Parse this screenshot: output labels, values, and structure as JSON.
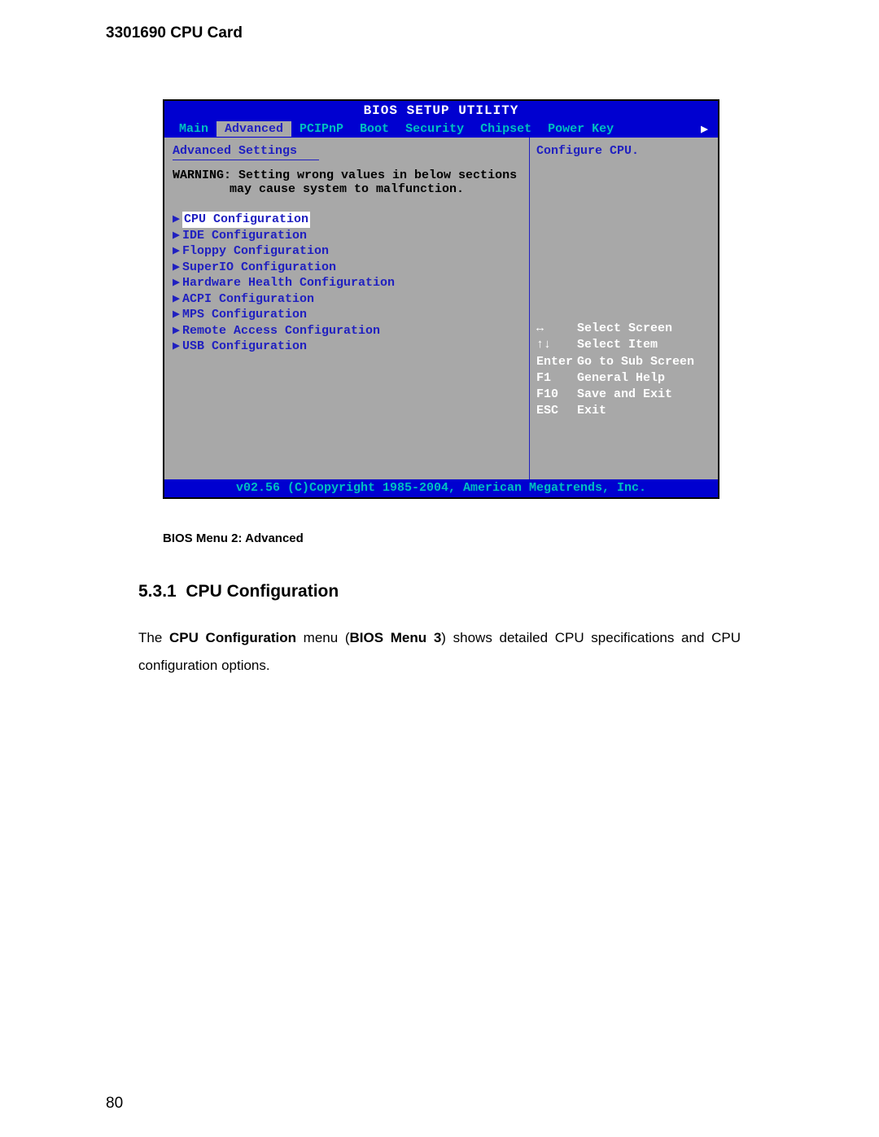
{
  "doc": {
    "header": "3301690 CPU Card",
    "caption": "BIOS Menu 2: Advanced",
    "section_number": "5.3.1",
    "section_title": "CPU Configuration",
    "body_p1_a": "The ",
    "body_p1_b": "CPU Configuration",
    "body_p1_c": " menu (",
    "body_p1_d": "BIOS Menu 3",
    "body_p1_e": ") shows detailed CPU specifications and CPU configuration options.",
    "page_number": "80"
  },
  "bios": {
    "title": "BIOS SETUP UTILITY",
    "tabs": [
      "Main",
      "Advanced",
      "PCIPnP",
      "Boot",
      "Security",
      "Chipset",
      "Power Key"
    ],
    "active_tab_index": 1,
    "settings_title": "Advanced Settings",
    "warning_l1": "WARNING: Setting wrong values in below sections",
    "warning_l2": "may cause system to malfunction.",
    "menu": [
      "CPU Configuration",
      "IDE Configuration",
      "Floppy Configuration",
      "SuperIO Configuration",
      "Hardware Health Configuration",
      "ACPI Configuration",
      "MPS Configuration",
      "Remote Access Configuration",
      "USB Configuration"
    ],
    "selected_menu_index": 0,
    "help_text": "Configure CPU.",
    "hints": [
      {
        "k": "↔",
        "v": "Select Screen"
      },
      {
        "k": "↑↓",
        "v": "Select Item"
      },
      {
        "k": "Enter",
        "v": "Go to Sub Screen"
      },
      {
        "k": "F1",
        "v": "General Help"
      },
      {
        "k": "F10",
        "v": "Save and Exit"
      },
      {
        "k": "ESC",
        "v": "Exit"
      }
    ],
    "footer": "v02.56 (C)Copyright 1985-2004, American Megatrends, Inc.",
    "colors": {
      "blue": "#0000d0",
      "gray": "#a8a8a8",
      "cyan": "#00c0c0",
      "darkblue": "#2020c0",
      "white": "#ffffff",
      "black": "#000000"
    }
  }
}
